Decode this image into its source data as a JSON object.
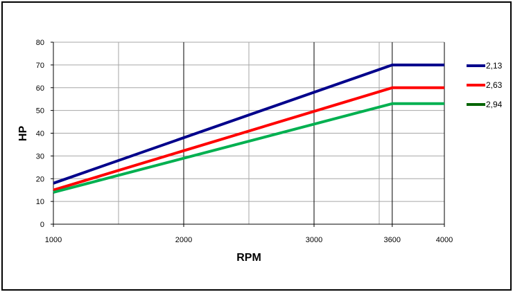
{
  "chart_data": {
    "type": "line",
    "title": "",
    "xlabel": "RPM",
    "ylabel": "HP",
    "x_ticks": [
      "1000",
      "2000",
      "3000",
      "3600",
      "4000"
    ],
    "y_ticks": [
      "0",
      "10",
      "20",
      "30",
      "40",
      "50",
      "60",
      "70",
      "80"
    ],
    "xlim": [
      1000,
      4000
    ],
    "ylim": [
      0,
      80
    ],
    "grid": true,
    "legend_position": "right",
    "series": [
      {
        "name": "2,13",
        "legend_color": "#00008b",
        "line_color": "#00008b",
        "x": [
          1000,
          3600,
          4000
        ],
        "values": [
          18,
          70,
          70
        ]
      },
      {
        "name": "2,63",
        "legend_color": "#ff0000",
        "line_color": "#ff0000",
        "x": [
          1000,
          3600,
          4000
        ],
        "values": [
          15,
          60,
          60
        ]
      },
      {
        "name": "2,94",
        "legend_color": "#006400",
        "line_color": "#00b050",
        "x": [
          1000,
          3600,
          4000
        ],
        "values": [
          14,
          53,
          53
        ]
      }
    ]
  }
}
